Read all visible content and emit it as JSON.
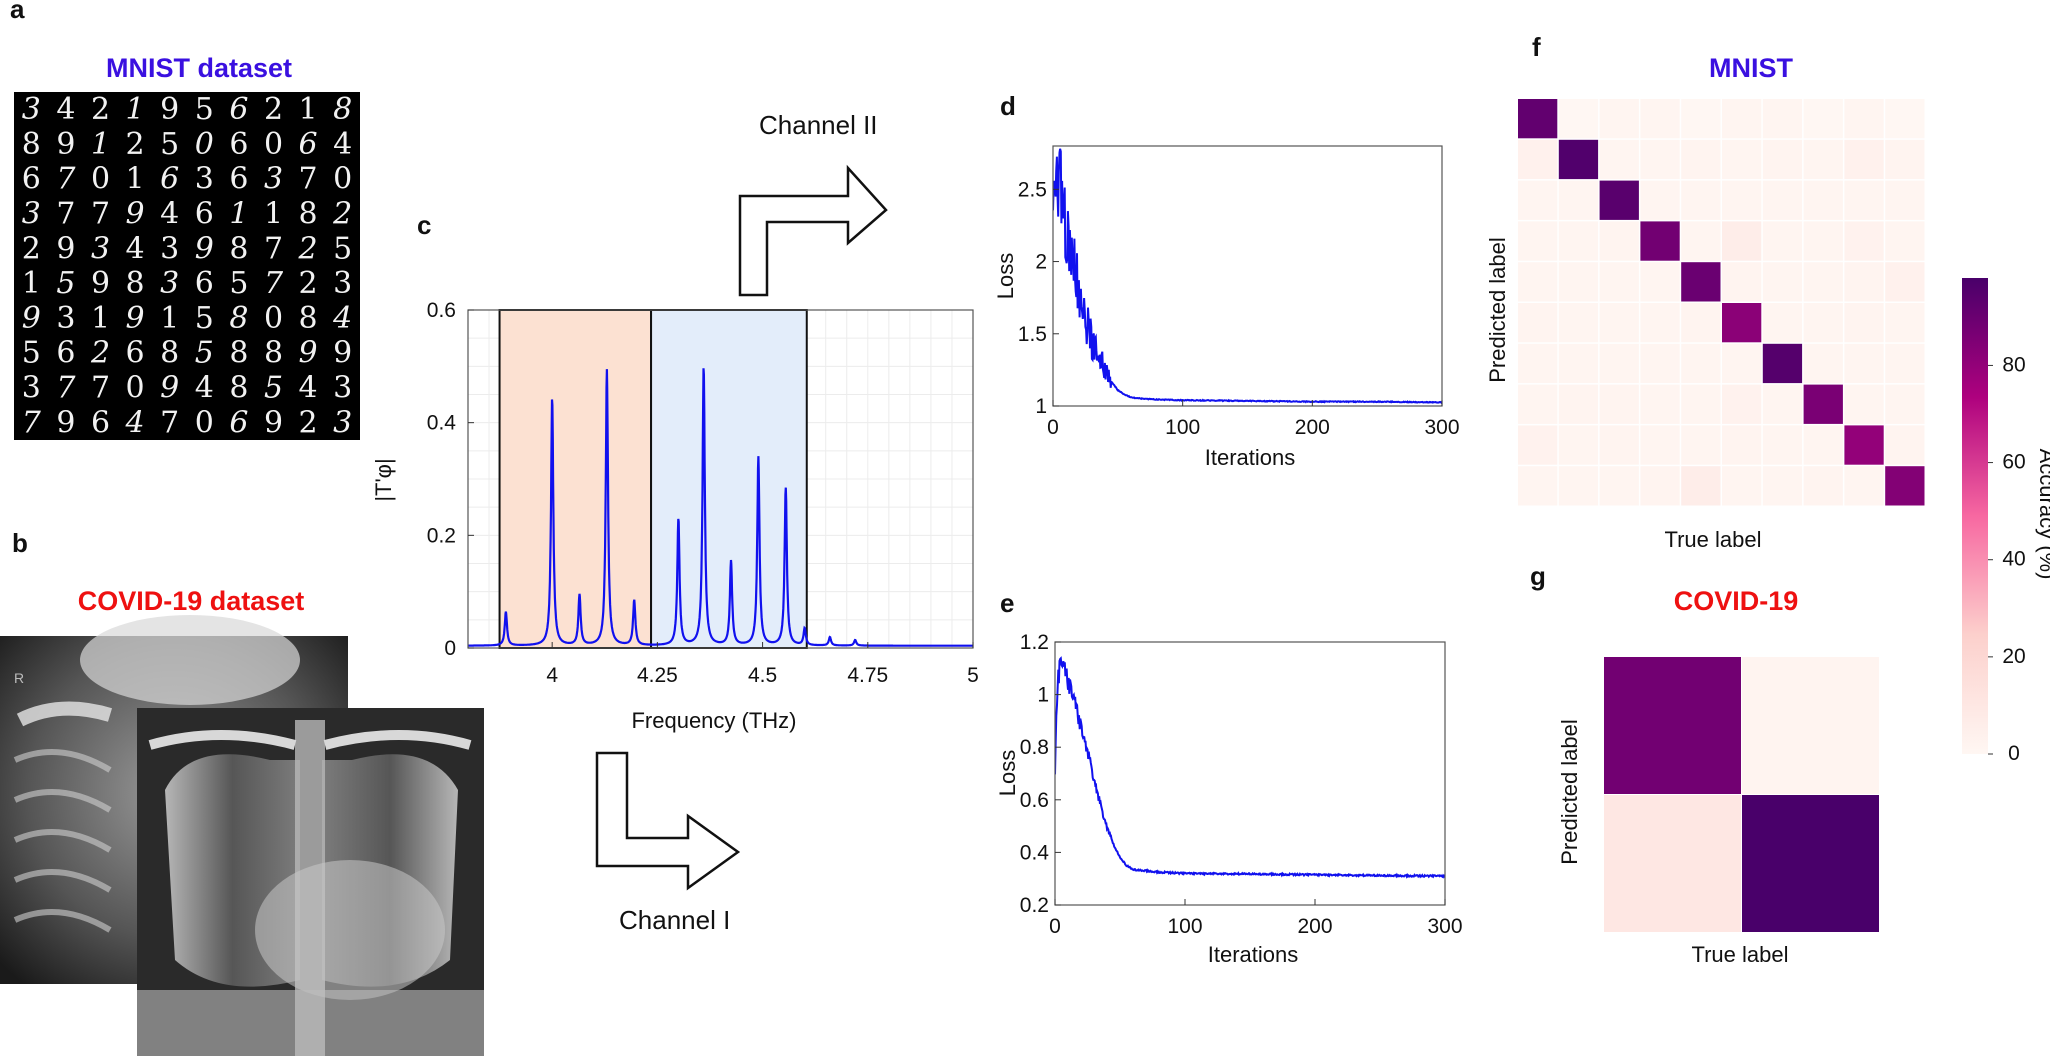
{
  "panels": {
    "a": {
      "letter": "a",
      "title": "MNIST dataset",
      "title_color": "#3a10e0",
      "digit_rows": [
        "3421956218",
        "8912506064",
        "6701636370",
        "3779461182",
        "2934398725",
        "1598365723",
        "9319158084",
        "5626858899",
        "3770948543",
        "7964706923"
      ]
    },
    "b": {
      "letter": "b",
      "title": "COVID-19 dataset",
      "title_color": "#ee1111",
      "xray_marker": "R"
    },
    "c": {
      "letter": "c",
      "channel_top": "Channel II",
      "channel_bottom": "Channel I",
      "band_colors": {
        "channel_1": "#fce1d2",
        "channel_2": "#e3edfa"
      }
    },
    "d": {
      "letter": "d"
    },
    "e": {
      "letter": "e"
    },
    "f": {
      "letter": "f",
      "title": "MNIST",
      "title_color": "#3a10e0"
    },
    "g": {
      "letter": "g",
      "title": "COVID-19",
      "title_color": "#ee1111"
    }
  },
  "chart_data": [
    {
      "panel": "c",
      "type": "line",
      "xlabel": "Frequency (THz)",
      "ylabel": "|T'φ|",
      "xlim": [
        3.8,
        5.0
      ],
      "ylim": [
        0,
        0.6
      ],
      "xticks": [
        "4",
        "4.25",
        "4.5",
        "4.75",
        "5"
      ],
      "yticks": [
        "0",
        "0.2",
        "0.4",
        "0.6"
      ],
      "grid": true,
      "line_color": "#1111ee",
      "bands": [
        {
          "range": [
            3.875,
            4.235
          ],
          "color": "#fce1d2"
        },
        {
          "range": [
            4.235,
            4.605
          ],
          "color": "#e3edfa"
        }
      ],
      "peaks": [
        {
          "x": 3.89,
          "y": 0.06
        },
        {
          "x": 4.0,
          "y": 0.44
        },
        {
          "x": 4.065,
          "y": 0.09
        },
        {
          "x": 4.13,
          "y": 0.49
        },
        {
          "x": 4.195,
          "y": 0.08
        },
        {
          "x": 4.3,
          "y": 0.225
        },
        {
          "x": 4.36,
          "y": 0.495
        },
        {
          "x": 4.425,
          "y": 0.15
        },
        {
          "x": 4.49,
          "y": 0.335
        },
        {
          "x": 4.555,
          "y": 0.28
        },
        {
          "x": 4.6,
          "y": 0.03
        },
        {
          "x": 4.66,
          "y": 0.015
        },
        {
          "x": 4.72,
          "y": 0.01
        }
      ]
    },
    {
      "panel": "d",
      "type": "line",
      "xlabel": "Iterations",
      "ylabel": "Loss",
      "xlim": [
        0,
        300
      ],
      "ylim": [
        1,
        2.8
      ],
      "xticks": [
        "0",
        "100",
        "200",
        "300"
      ],
      "yticks": [
        "1",
        "1.5",
        "2",
        "2.5"
      ],
      "line_color": "#1111ee",
      "x": [
        0,
        2,
        5,
        8,
        12,
        16,
        20,
        25,
        30,
        35,
        40,
        45,
        50,
        55,
        60,
        70,
        80,
        100,
        150,
        200,
        250,
        300
      ],
      "y": [
        2.3,
        2.5,
        2.6,
        2.35,
        2.1,
        2.0,
        1.8,
        1.6,
        1.45,
        1.35,
        1.25,
        1.17,
        1.11,
        1.08,
        1.06,
        1.05,
        1.045,
        1.04,
        1.035,
        1.03,
        1.03,
        1.025
      ]
    },
    {
      "panel": "e",
      "type": "line",
      "xlabel": "Iterations",
      "ylabel": "Loss",
      "xlim": [
        0,
        300
      ],
      "ylim": [
        0.2,
        1.2
      ],
      "xticks": [
        "0",
        "100",
        "200",
        "300"
      ],
      "yticks": [
        "0.2",
        "0.4",
        "0.6",
        "0.8",
        "1",
        "1.2"
      ],
      "line_color": "#1111ee",
      "x": [
        0,
        2,
        5,
        8,
        12,
        16,
        20,
        25,
        30,
        35,
        40,
        45,
        50,
        55,
        60,
        70,
        80,
        100,
        150,
        200,
        250,
        300
      ],
      "y": [
        0.7,
        1.05,
        1.12,
        1.08,
        1.02,
        0.96,
        0.88,
        0.78,
        0.68,
        0.58,
        0.5,
        0.43,
        0.38,
        0.35,
        0.335,
        0.33,
        0.325,
        0.32,
        0.318,
        0.315,
        0.312,
        0.31
      ]
    },
    {
      "panel": "f",
      "type": "heatmap",
      "xlabel": "True label",
      "ylabel": "Predicted label",
      "n": 10,
      "diagonal": [
        92,
        96,
        94,
        88,
        90,
        82,
        95,
        86,
        80,
        84
      ],
      "off_diagonal": [
        [
          0,
          0,
          1,
          1,
          0,
          1,
          1,
          0,
          1,
          0
        ],
        [
          4,
          0,
          1,
          1,
          2,
          1,
          2,
          1,
          4,
          2
        ],
        [
          1,
          1,
          0,
          1,
          1,
          1,
          1,
          1,
          1,
          1
        ],
        [
          1,
          1,
          2,
          0,
          1,
          6,
          1,
          1,
          3,
          1
        ],
        [
          1,
          1,
          1,
          1,
          0,
          2,
          1,
          1,
          2,
          4
        ],
        [
          2,
          1,
          1,
          1,
          2,
          0,
          1,
          1,
          2,
          1
        ],
        [
          1,
          1,
          1,
          1,
          1,
          1,
          0,
          1,
          1,
          1
        ],
        [
          1,
          2,
          2,
          1,
          1,
          3,
          1,
          0,
          1,
          1
        ],
        [
          3,
          1,
          2,
          1,
          1,
          2,
          1,
          1,
          0,
          2
        ],
        [
          1,
          1,
          1,
          2,
          6,
          1,
          1,
          2,
          1,
          0
        ]
      ]
    },
    {
      "panel": "g",
      "type": "heatmap",
      "xlabel": "True label",
      "ylabel": "Predicted label",
      "n": 2,
      "values": [
        [
          88,
          2
        ],
        [
          10,
          98
        ]
      ]
    },
    {
      "panel": "colorbar",
      "type": "colorbar",
      "label": "Accuracy (%)",
      "range": [
        0,
        98
      ],
      "ticks": [
        "0",
        "20",
        "40",
        "60",
        "80"
      ]
    }
  ]
}
